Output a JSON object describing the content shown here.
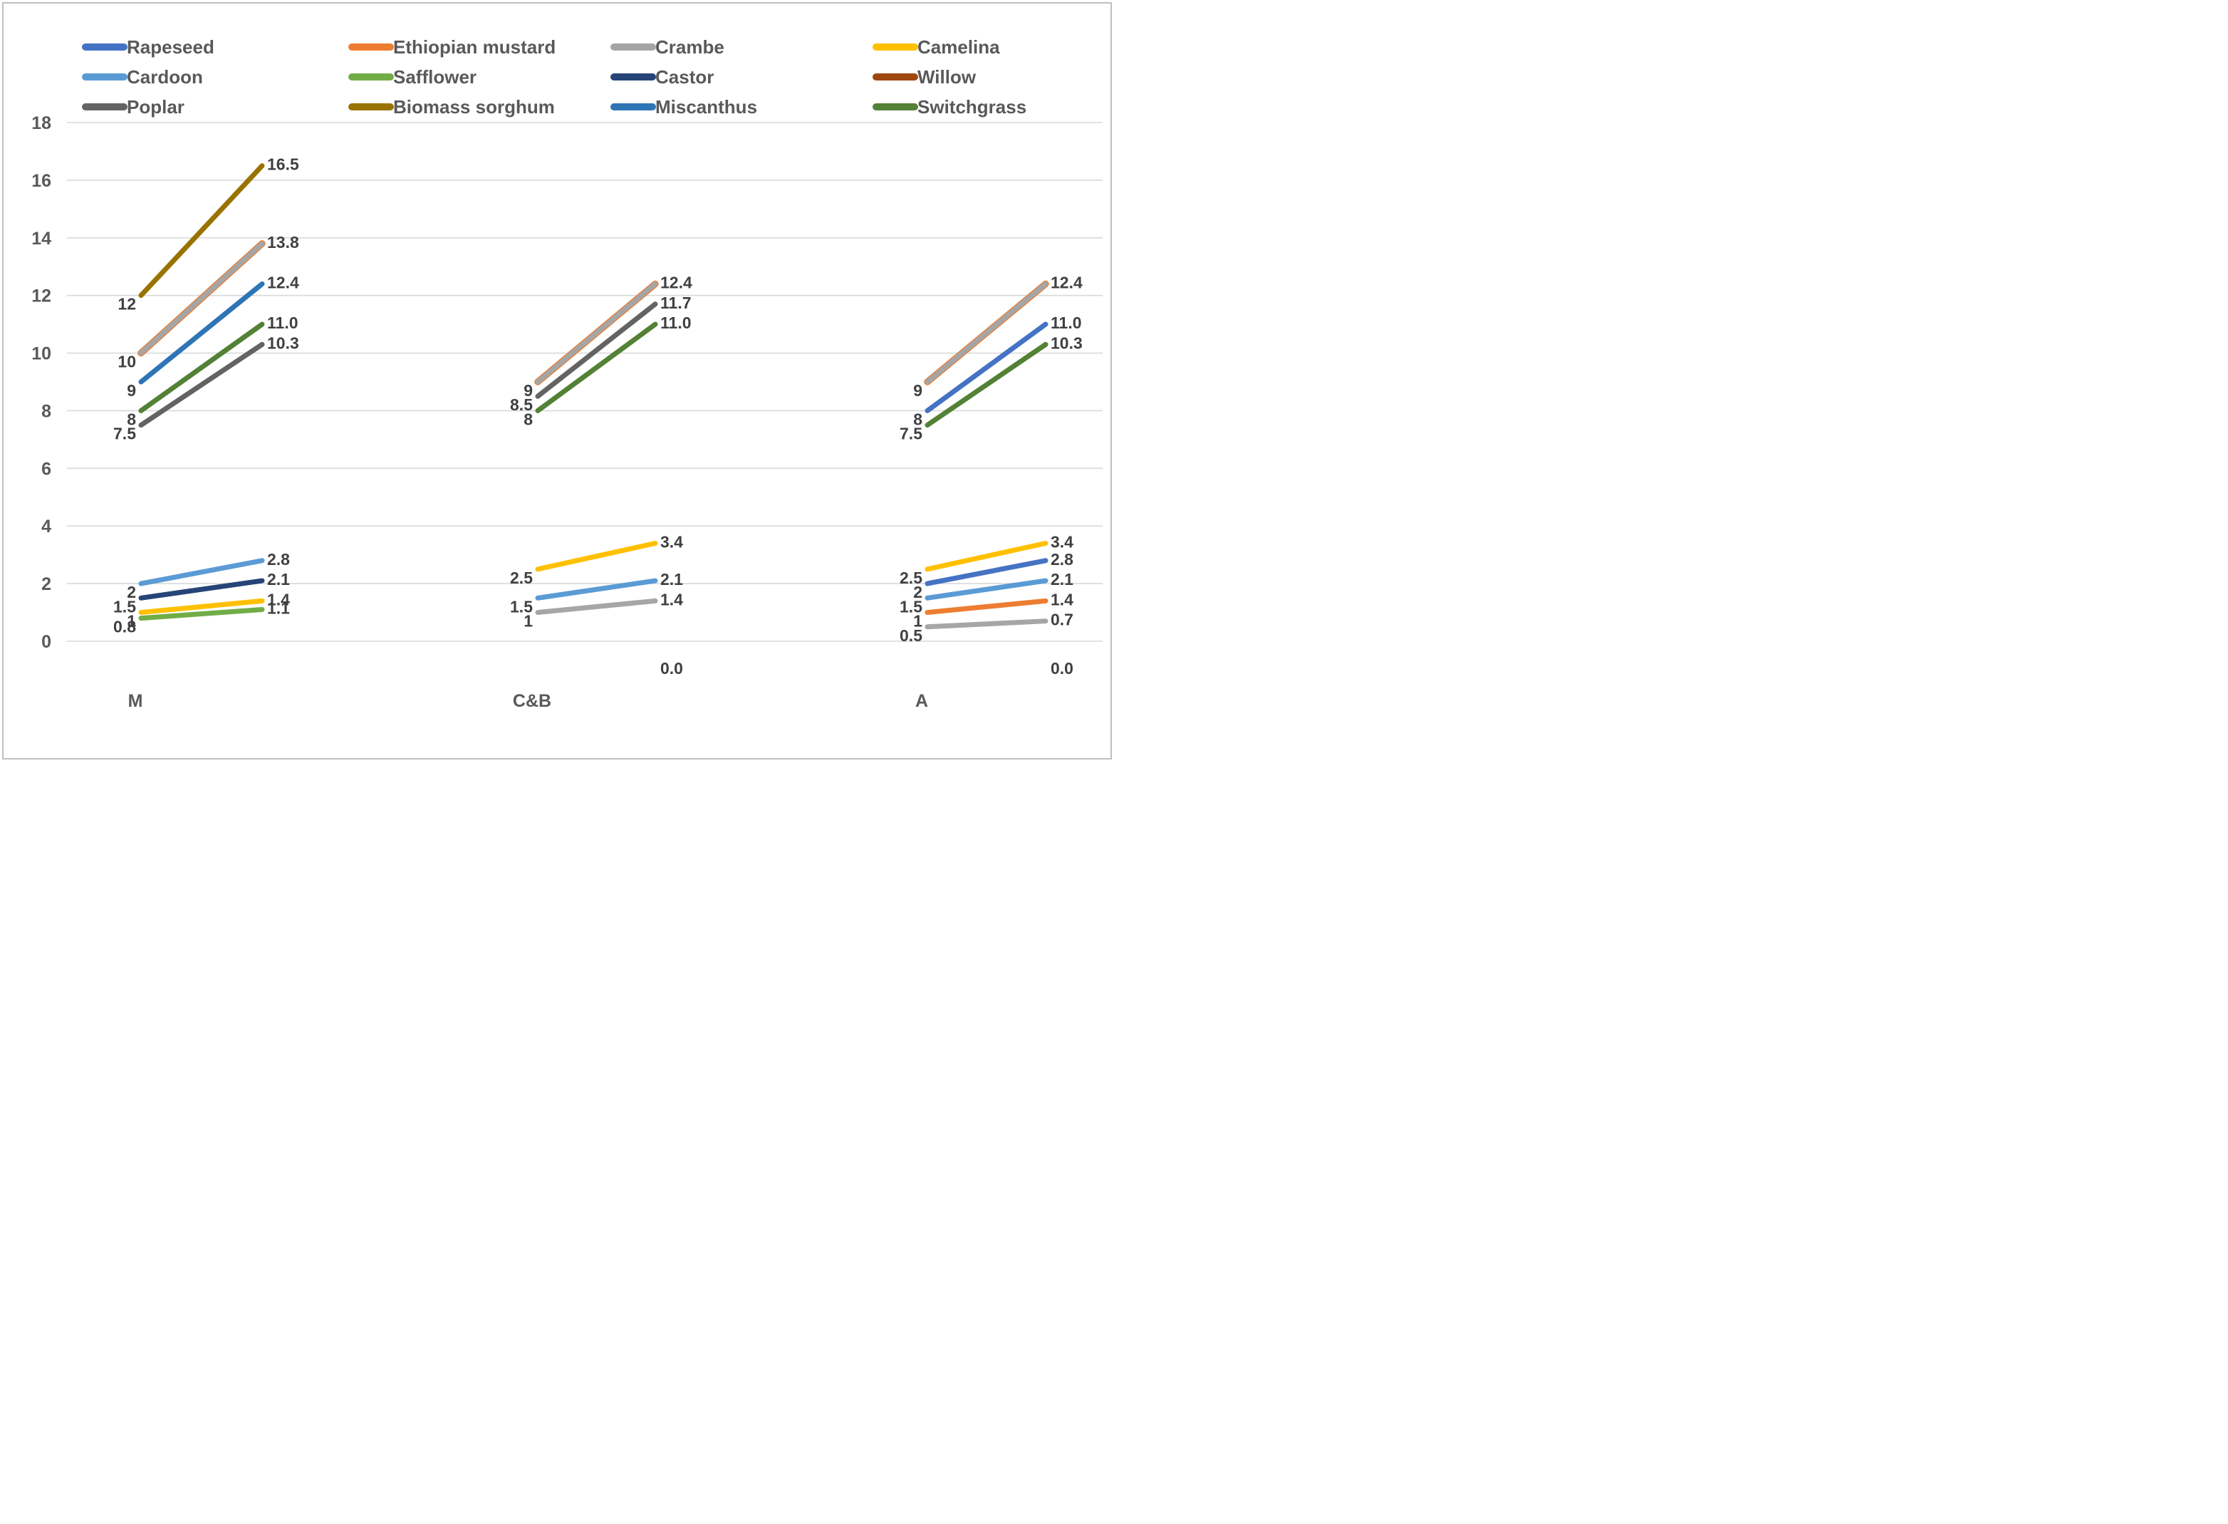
{
  "chart_data": {
    "type": "line",
    "subtype": "grouped-slope-chart",
    "title": "",
    "xlabel": "",
    "ylabel": "",
    "y_axis": {
      "min": 0,
      "max": 18,
      "step": 2,
      "tick_labels": [
        "0",
        "2",
        "4",
        "6",
        "8",
        "10",
        "12",
        "14",
        "16",
        "18"
      ],
      "grid": true,
      "grid_color": "#D9D9D9",
      "tick_color": "#595959"
    },
    "x_categories": [
      "M",
      "C&B",
      "A"
    ],
    "legend_position": "top",
    "label_color": "#404040",
    "legend": [
      {
        "name": "Rapeseed",
        "color": "#4472C4"
      },
      {
        "name": "Ethiopian mustard",
        "color": "#ED7D31"
      },
      {
        "name": "Crambe",
        "color": "#A5A5A5"
      },
      {
        "name": "Camelina",
        "color": "#FFC000"
      },
      {
        "name": "Cardoon",
        "color": "#5B9BD5"
      },
      {
        "name": "Safflower",
        "color": "#70AD47"
      },
      {
        "name": "Castor",
        "color": "#264478"
      },
      {
        "name": "Willow",
        "color": "#9E480E"
      },
      {
        "name": "Poplar",
        "color": "#636363"
      },
      {
        "name": "Biomass sorghum",
        "color": "#997300"
      },
      {
        "name": "Miscanthus",
        "color": "#2E75B6"
      },
      {
        "name": "Switchgrass",
        "color": "#538135"
      }
    ],
    "groups": [
      {
        "category": "M",
        "lines": [
          {
            "series": "Biomass sorghum",
            "color": "#997300",
            "from": 12,
            "to": 16.5,
            "from_label": "12",
            "to_label": "16.5"
          },
          {
            "series": "Crambe",
            "color": "#A5A5A5",
            "under_color": "#ED7D31",
            "from": 10,
            "to": 13.8,
            "from_label": "10",
            "to_label": "13.8"
          },
          {
            "series": "Miscanthus",
            "color": "#2E75B6",
            "from": 9,
            "to": 12.4,
            "from_label": "9",
            "to_label": "12.4"
          },
          {
            "series": "Switchgrass",
            "color": "#538135",
            "from": 8,
            "to": 11.0,
            "from_label": "8",
            "to_label": "11.0"
          },
          {
            "series": "Poplar",
            "color": "#636363",
            "from": 7.5,
            "to": 10.3,
            "from_label": "7.5",
            "to_label": "10.3"
          },
          {
            "series": "Cardoon",
            "color": "#5B9BD5",
            "from": 2,
            "to": 2.8,
            "from_label": "2",
            "to_label": "2.8"
          },
          {
            "series": "Castor",
            "color": "#264478",
            "from": 1.5,
            "to": 2.1,
            "from_label": "1.5",
            "to_label": "2.1"
          },
          {
            "series": "Camelina",
            "color": "#FFC000",
            "from": 1,
            "to": 1.4,
            "from_label": "1",
            "to_label": "1.4"
          },
          {
            "series": "Safflower",
            "color": "#70AD47",
            "from": 0.8,
            "to": 1.1,
            "from_label": "0.8",
            "to_label": "1.1"
          }
        ],
        "zero_label": ""
      },
      {
        "category": "C&B",
        "lines": [
          {
            "series": "Crambe",
            "color": "#A5A5A5",
            "under_color": "#ED7D31",
            "from": 9,
            "to": 12.4,
            "from_label": "9",
            "to_label": "12.4"
          },
          {
            "series": "Poplar",
            "color": "#636363",
            "from": 8.5,
            "to": 11.7,
            "from_label": "8.5",
            "to_label": "11.7"
          },
          {
            "series": "Switchgrass",
            "color": "#538135",
            "from": 8,
            "to": 11.0,
            "from_label": "8",
            "to_label": "11.0"
          },
          {
            "series": "Camelina",
            "color": "#FFC000",
            "from": 2.5,
            "to": 3.4,
            "from_label": "2.5",
            "to_label": "3.4"
          },
          {
            "series": "Cardoon",
            "color": "#5B9BD5",
            "from": 1.5,
            "to": 2.1,
            "from_label": "1.5",
            "to_label": "2.1"
          },
          {
            "series": "Crambe",
            "color": "#A6A6A6",
            "from": 1,
            "to": 1.4,
            "from_label": "1",
            "to_label": "1.4"
          }
        ],
        "zero_label": "0.0"
      },
      {
        "category": "A",
        "lines": [
          {
            "series": "Crambe",
            "color": "#A5A5A5",
            "under_color": "#ED7D31",
            "from": 9,
            "to": 12.4,
            "from_label": "9",
            "to_label": "12.4"
          },
          {
            "series": "Rapeseed",
            "color": "#4472C4",
            "from": 8,
            "to": 11.0,
            "from_label": "8",
            "to_label": "11.0"
          },
          {
            "series": "Switchgrass",
            "color": "#538135",
            "from": 7.5,
            "to": 10.3,
            "from_label": "7.5",
            "to_label": "10.3"
          },
          {
            "series": "Camelina",
            "color": "#FFC000",
            "from": 2.5,
            "to": 3.4,
            "from_label": "2.5",
            "to_label": "3.4"
          },
          {
            "series": "Rapeseed",
            "color": "#4472C4",
            "from": 2,
            "to": 2.8,
            "from_label": "2",
            "to_label": "2.8"
          },
          {
            "series": "Cardoon",
            "color": "#5B9BD5",
            "from": 1.5,
            "to": 2.1,
            "from_label": "1.5",
            "to_label": "2.1"
          },
          {
            "series": "Ethiopian mustard",
            "color": "#ED7D31",
            "from": 1,
            "to": 1.4,
            "from_label": "1",
            "to_label": "1.4"
          },
          {
            "series": "Crambe",
            "color": "#A6A6A6",
            "from": 0.5,
            "to": 0.7,
            "from_label": "0.5",
            "to_label": "0.7"
          }
        ],
        "zero_label": "0.0"
      }
    ]
  }
}
